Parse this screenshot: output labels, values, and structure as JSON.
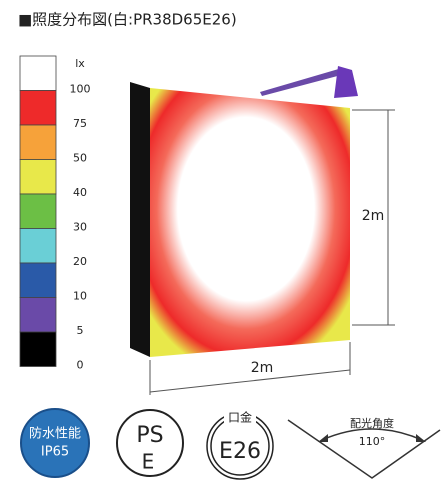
{
  "header": {
    "title": "■照度分布図(白:PR38D65E26)"
  },
  "legend": {
    "unit": "lx",
    "levels": [
      {
        "label": "100",
        "color": "#ffffff"
      },
      {
        "label": "75",
        "color": "#ee2a2a"
      },
      {
        "label": "50",
        "color": "#f6a23a"
      },
      {
        "label": "40",
        "color": "#e8e84a"
      },
      {
        "label": "30",
        "color": "#6cbf45"
      },
      {
        "label": "20",
        "color": "#6acfd6"
      },
      {
        "label": "10",
        "color": "#2a5aa8"
      },
      {
        "label": "5",
        "color": "#6a4aa8"
      },
      {
        "label": "0",
        "color": "#000000"
      }
    ]
  },
  "dimensions": {
    "height": "2m",
    "width": "2m"
  },
  "badges": {
    "waterproof": {
      "line1": "防水性能",
      "line2": "IP65"
    },
    "pse": {
      "top": "PS",
      "bottom": "E"
    },
    "base": {
      "caption": "口金",
      "label": "E26"
    },
    "beam": {
      "caption": "配光角度",
      "angle": "110°"
    }
  }
}
